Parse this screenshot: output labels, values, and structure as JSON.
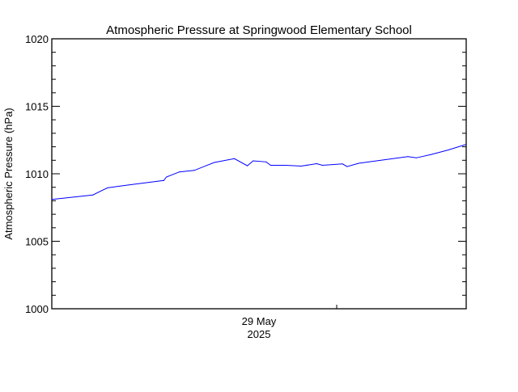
{
  "chart_data": {
    "type": "line",
    "title": "Atmospheric Pressure at Springwood Elementary School",
    "xlabel": "",
    "ylabel": "Atmospheric Pressure (hPa)",
    "ylim": [
      1000,
      1020
    ],
    "yticks": [
      "1000",
      "1005",
      "1010",
      "1015",
      "1020"
    ],
    "xlim": [
      "2025-05-28T04:00",
      "2025-05-30T20:00"
    ],
    "xtick_label": {
      "day": "29 May",
      "year": "2025",
      "at": "2025-05-29T12:00"
    },
    "xtick_major": [
      "2025-05-30T00:00"
    ],
    "grid": false,
    "line_color": "#0000ff",
    "series": [
      {
        "x": [
          "2025-05-28T04:00",
          "2025-05-28T10:20",
          "2025-05-28T12:36",
          "2025-05-28T15:42",
          "2025-05-28T21:18",
          "2025-05-28T21:42",
          "2025-05-28T23:42",
          "2025-05-29T02:00",
          "2025-05-29T05:06",
          "2025-05-29T08:12",
          "2025-05-29T10:12",
          "2025-05-29T11:06",
          "2025-05-29T13:06",
          "2025-05-29T13:48",
          "2025-05-29T16:12",
          "2025-05-29T18:30",
          "2025-05-29T20:54",
          "2025-05-29T21:48",
          "2025-05-30T00:54",
          "2025-05-30T01:36",
          "2025-05-30T03:24",
          "2025-05-30T06:30",
          "2025-05-30T11:00",
          "2025-05-30T12:18",
          "2025-05-30T14:36",
          "2025-05-30T17:12",
          "2025-05-30T19:54"
        ],
        "y": [
          1008.1,
          1008.43,
          1008.96,
          1009.16,
          1009.5,
          1009.76,
          1010.14,
          1010.25,
          1010.84,
          1011.12,
          1010.59,
          1010.96,
          1010.88,
          1010.63,
          1010.63,
          1010.57,
          1010.75,
          1010.63,
          1010.73,
          1010.53,
          1010.78,
          1010.98,
          1011.27,
          1011.18,
          1011.43,
          1011.76,
          1012.16
        ]
      }
    ]
  }
}
